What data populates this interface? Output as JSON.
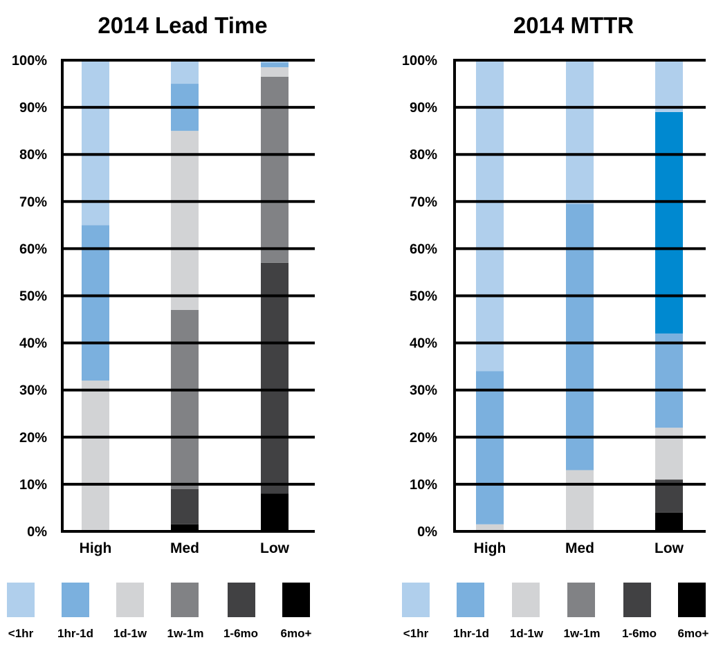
{
  "colors": {
    "lt1hr": "#b0cfec",
    "hr1d": "#7bb0de",
    "d1w": "#d2d3d5",
    "w1m": "#818285",
    "mo16": "#414143",
    "mo6plus": "#000000",
    "bright_blue": "#0089d0",
    "grid": "#000000"
  },
  "chart_data": [
    {
      "type": "bar",
      "stacked": true,
      "title": "2014 Lead Time",
      "categories": [
        "High",
        "Med",
        "Low"
      ],
      "y_ticks": [
        "0%",
        "10%",
        "20%",
        "30%",
        "40%",
        "50%",
        "60%",
        "70%",
        "80%",
        "90%",
        "100%"
      ],
      "ylim": [
        0,
        100
      ],
      "grid": true,
      "legend_position": "bottom",
      "legend": [
        "<1hr",
        "1hr-1d",
        "1d-1w",
        "1w-1m",
        "1-6mo",
        "6mo+"
      ],
      "series": [
        {
          "name": "6mo+",
          "color": "#000000",
          "values": [
            0,
            1.5,
            8
          ]
        },
        {
          "name": "1-6mo",
          "color": "#414143",
          "values": [
            0,
            7.5,
            49
          ]
        },
        {
          "name": "1w-1m",
          "color": "#818285",
          "values": [
            0,
            38,
            39.5
          ]
        },
        {
          "name": "1d-1w",
          "color": "#d2d3d5",
          "values": [
            32,
            38,
            2
          ]
        },
        {
          "name": "1hr-1d",
          "color": "#7bb0de",
          "values": [
            33,
            10,
            1
          ]
        },
        {
          "name": "<1hr",
          "color": "#b0cfec",
          "values": [
            35,
            5,
            0.5
          ]
        }
      ]
    },
    {
      "type": "bar",
      "stacked": true,
      "title": "2014 MTTR",
      "categories": [
        "High",
        "Med",
        "Low"
      ],
      "y_ticks": [
        "0%",
        "10%",
        "20%",
        "30%",
        "40%",
        "50%",
        "60%",
        "70%",
        "80%",
        "90%",
        "100%"
      ],
      "ylim": [
        0,
        100
      ],
      "grid": true,
      "legend_position": "bottom",
      "legend": [
        "<1hr",
        "1hr-1d",
        "1d-1w",
        "1w-1m",
        "1-6mo",
        "6mo+"
      ],
      "series": [
        {
          "name": "6mo+",
          "color": "#000000",
          "values": [
            0,
            0,
            4
          ]
        },
        {
          "name": "1-6mo",
          "color": "#414143",
          "values": [
            0,
            0,
            7
          ]
        },
        {
          "name": "1d-1w",
          "color": "#d2d3d5",
          "values": [
            1.5,
            13,
            11
          ]
        },
        {
          "name": "1hr-1d",
          "color": "#7bb0de",
          "values": [
            32.5,
            56.5,
            20
          ]
        },
        {
          "name": "",
          "color": "#0089d0",
          "values": [
            0,
            0,
            47
          ]
        },
        {
          "name": "<1hr",
          "color": "#b0cfec",
          "values": [
            66,
            30.5,
            11
          ]
        }
      ]
    }
  ]
}
